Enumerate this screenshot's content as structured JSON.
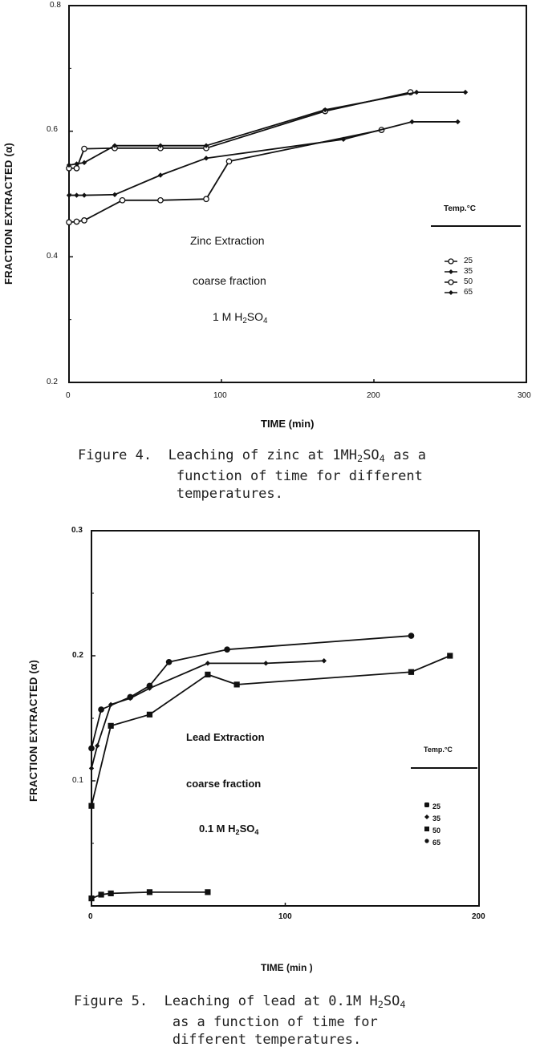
{
  "figure4": {
    "ylabel": "FRACTION EXTRACTED (α)",
    "xlabel": "TIME (min)",
    "y_ticks": [
      "0.8",
      "0.6",
      "0.4",
      "0.2"
    ],
    "x_ticks": [
      "0",
      "100",
      "200",
      "300"
    ],
    "annotations": {
      "line1": "Zinc Extraction",
      "line2": "coarse fraction",
      "line3_prefix": "1 M H",
      "line3_sub": "2",
      "line3_suffix": "SO",
      "line3_sub2": "4"
    },
    "legend": {
      "title": "Temp.°C",
      "items": [
        {
          "label": "25",
          "marker": "open-circle"
        },
        {
          "label": "35",
          "marker": "filled-diamond"
        },
        {
          "label": "50",
          "marker": "open-circle"
        },
        {
          "label": "65",
          "marker": "filled-diamond"
        }
      ]
    },
    "caption": {
      "label": "Figure 4.",
      "line1_prefix": "Leaching of zinc at 1MH",
      "line1_sub": "2",
      "line1_mid": "SO",
      "line1_sub2": "4",
      "line1_suffix": " as a",
      "line2": "function of time for different",
      "line3": "temperatures."
    }
  },
  "figure5": {
    "ylabel": "FRACTION EXTRACTED (α)",
    "xlabel": "TIME (min )",
    "y_ticks": [
      "0.3",
      "0.2",
      "0.1"
    ],
    "x_ticks": [
      "0",
      "100",
      "200"
    ],
    "annotations": {
      "line1": "Lead Extraction",
      "line2": "coarse fraction",
      "line3_prefix": "0.1 M H",
      "line3_sub": "2",
      "line3_suffix": "SO",
      "line3_sub2": "4"
    },
    "legend": {
      "title": "Temp.°C",
      "items": [
        {
          "label": "25",
          "marker": "filled-square"
        },
        {
          "label": "35",
          "marker": "filled-diamond"
        },
        {
          "label": "50",
          "marker": "filled-square"
        },
        {
          "label": "65",
          "marker": "filled-circle"
        }
      ]
    },
    "caption": {
      "label": "Figure 5.",
      "line1_prefix": "Leaching of lead at 0.1M H",
      "line1_sub": "2",
      "line1_mid": "SO",
      "line1_sub2": "4",
      "line2": "as a function of time for",
      "line3": "different temperatures."
    }
  },
  "chart_data": [
    {
      "type": "line",
      "title": "Figure 4. Leaching of zinc at 1MH2SO4 as a function of time for different temperatures.",
      "xlabel": "TIME (min)",
      "ylabel": "FRACTION EXTRACTED (α)",
      "xlim": [
        0,
        300
      ],
      "ylim": [
        0.2,
        0.8
      ],
      "x_ticks": [
        0,
        100,
        200,
        300
      ],
      "y_ticks": [
        0.2,
        0.4,
        0.6,
        0.8
      ],
      "grid": false,
      "legend_position": "right-middle",
      "legend_title": "Temp.°C",
      "annotations": [
        "Zinc Extraction",
        "coarse fraction",
        "1 M H2SO4"
      ],
      "series": [
        {
          "name": "25",
          "marker": "open",
          "x": [
            0,
            5,
            10,
            35,
            60,
            90,
            105,
            205
          ],
          "y": [
            0.455,
            0.456,
            0.458,
            0.49,
            0.49,
            0.492,
            0.552,
            0.602
          ]
        },
        {
          "name": "35",
          "marker": "filled",
          "x": [
            0,
            5,
            10,
            30,
            60,
            90,
            180,
            225,
            255
          ],
          "y": [
            0.498,
            0.498,
            0.498,
            0.499,
            0.53,
            0.557,
            0.587,
            0.615,
            0.615
          ]
        },
        {
          "name": "50",
          "marker": "open",
          "x": [
            0,
            5,
            10,
            30,
            60,
            90,
            168,
            224
          ],
          "y": [
            0.541,
            0.541,
            0.572,
            0.573,
            0.573,
            0.573,
            0.632,
            0.662
          ]
        },
        {
          "name": "65",
          "marker": "filled",
          "x": [
            0,
            5,
            10,
            30,
            60,
            90,
            168,
            228,
            260
          ],
          "y": [
            0.546,
            0.548,
            0.55,
            0.577,
            0.577,
            0.577,
            0.634,
            0.662,
            0.662
          ]
        }
      ]
    },
    {
      "type": "line",
      "title": "Figure 5. Leaching of lead at 0.1M H2SO4 as a function of time for different temperatures.",
      "xlabel": "TIME (min )",
      "ylabel": "FRACTION EXTRACTED (α)",
      "xlim": [
        0,
        200
      ],
      "ylim": [
        0,
        0.3
      ],
      "x_ticks": [
        0,
        100,
        200
      ],
      "y_ticks": [
        0.1,
        0.2,
        0.3
      ],
      "grid": false,
      "legend_position": "right-middle",
      "legend_title": "Temp.°C",
      "annotations": [
        "Lead Extraction",
        "coarse fraction",
        "0.1 M H2SO4"
      ],
      "series": [
        {
          "name": "25",
          "marker": "filled-square",
          "x": [
            0,
            5,
            10,
            30,
            60
          ],
          "y": [
            0.006,
            0.009,
            0.01,
            0.011,
            0.011
          ]
        },
        {
          "name": "35",
          "marker": "filled-diamond",
          "x": [
            0,
            3,
            10,
            20,
            30,
            60,
            90,
            120
          ],
          "y": [
            0.11,
            0.128,
            0.161,
            0.166,
            0.174,
            0.194,
            0.194,
            0.196
          ]
        },
        {
          "name": "50",
          "marker": "filled-square",
          "x": [
            0,
            10,
            30,
            60,
            75,
            165,
            185
          ],
          "y": [
            0.08,
            0.144,
            0.153,
            0.185,
            0.177,
            0.187,
            0.2
          ]
        },
        {
          "name": "65",
          "marker": "filled-circle",
          "x": [
            0,
            5,
            20,
            30,
            40,
            70,
            165
          ],
          "y": [
            0.126,
            0.157,
            0.167,
            0.176,
            0.195,
            0.205,
            0.216
          ]
        }
      ]
    }
  ]
}
